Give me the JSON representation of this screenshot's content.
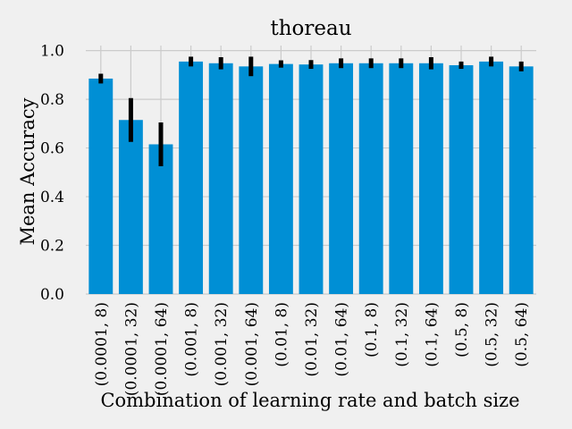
{
  "chart_data": {
    "type": "bar",
    "title": "thoreau",
    "xlabel": "Combination of learning rate and batch size",
    "ylabel": "Mean Accuracy",
    "ylim": [
      0,
      1.05
    ],
    "yticks": [
      "0.0",
      "0.2",
      "0.4",
      "0.6",
      "0.8",
      "1.0"
    ],
    "grid": true,
    "categories": [
      "(0.0001, 8)",
      "(0.0001, 32)",
      "(0.0001, 64)",
      "(0.001, 8)",
      "(0.001, 32)",
      "(0.001, 64)",
      "(0.01, 8)",
      "(0.01, 32)",
      "(0.01, 64)",
      "(0.1, 8)",
      "(0.1, 32)",
      "(0.1, 64)",
      "(0.5, 8)",
      "(0.5, 32)",
      "(0.5, 64)"
    ],
    "values": [
      0.885,
      0.715,
      0.615,
      0.955,
      0.948,
      0.935,
      0.945,
      0.943,
      0.948,
      0.948,
      0.948,
      0.948,
      0.94,
      0.955,
      0.935
    ],
    "errors": [
      0.02,
      0.09,
      0.09,
      0.02,
      0.025,
      0.04,
      0.015,
      0.018,
      0.02,
      0.02,
      0.02,
      0.025,
      0.015,
      0.02,
      0.02
    ],
    "colors": {
      "bar": "#008fd5",
      "error": "#000000",
      "grid": "#cbcbcb",
      "background": "#f0f0f0"
    }
  }
}
